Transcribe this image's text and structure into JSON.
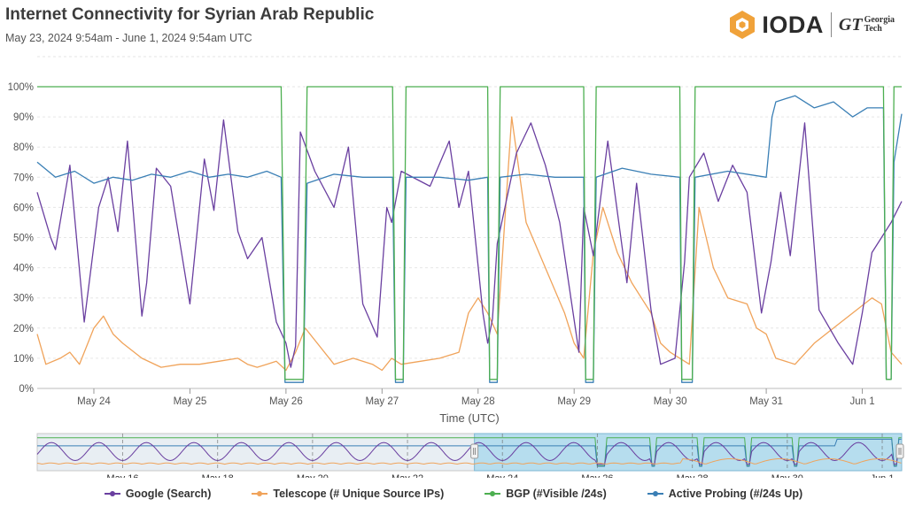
{
  "header": {
    "title": "Internet Connectivity for Syrian Arab Republic",
    "subtitle": "May 23, 2024 9:54am - June 1, 2024 9:54am UTC"
  },
  "logo": {
    "brand": "IODA",
    "partner_mark": "GT",
    "partner_line1": "Georgia",
    "partner_line2": "Tech"
  },
  "colors": {
    "google": "#6a3fa0",
    "telescope": "#f0a35a",
    "bgp": "#4caf50",
    "probing": "#3a7fb5"
  },
  "legend": [
    {
      "label": "Google (Search)",
      "color": "#6a3fa0"
    },
    {
      "label": "Telescope (# Unique Source IPs)",
      "color": "#f0a35a"
    },
    {
      "label": "BGP (#Visible /24s)",
      "color": "#4caf50"
    },
    {
      "label": "Active Probing (#/24s Up)",
      "color": "#3a7fb5"
    }
  ],
  "navigator": {
    "tick_labels": [
      "May 16",
      "May 18",
      "May 20",
      "May 22",
      "May 24",
      "May 26",
      "May 28",
      "May 30",
      "Jun 1"
    ],
    "selected_range": [
      "May 23",
      "Jun 1"
    ]
  },
  "chart_data": {
    "type": "line",
    "xlabel": "Time (UTC)",
    "ylabel": "",
    "ylim": [
      0,
      100
    ],
    "y_ticks": [
      "0%",
      "10%",
      "20%",
      "30%",
      "40%",
      "50%",
      "60%",
      "70%",
      "80%",
      "90%",
      "100%"
    ],
    "x_tick_labels": [
      "May 24",
      "May 25",
      "May 26",
      "May 27",
      "May 28",
      "May 29",
      "May 30",
      "May 31",
      "Jun 1"
    ],
    "x_range_days": [
      23.41,
      32.41
    ],
    "grid": true,
    "legend_position": "bottom",
    "series": [
      {
        "name": "Google (Search)",
        "x": [
          23.41,
          23.55,
          23.6,
          23.75,
          23.9,
          24.05,
          24.15,
          24.25,
          24.35,
          24.5,
          24.55,
          24.65,
          24.8,
          25.0,
          25.15,
          25.25,
          25.35,
          25.5,
          25.6,
          25.75,
          25.9,
          26.0,
          26.05,
          26.1,
          26.15,
          26.3,
          26.5,
          26.65,
          26.8,
          26.95,
          27.05,
          27.1,
          27.2,
          27.5,
          27.7,
          27.8,
          27.9,
          28.05,
          28.1,
          28.15,
          28.2,
          28.4,
          28.55,
          28.7,
          28.85,
          29.05,
          29.1,
          29.2,
          29.35,
          29.55,
          29.65,
          29.8,
          29.9,
          30.05,
          30.15,
          30.2,
          30.35,
          30.5,
          30.65,
          30.8,
          30.95,
          31.05,
          31.15,
          31.25,
          31.4,
          31.55,
          31.75,
          31.9,
          32.0,
          32.1,
          32.2,
          32.3,
          32.41
        ],
        "values": [
          65,
          50,
          46,
          74,
          22,
          60,
          70,
          52,
          82,
          24,
          35,
          73,
          67,
          28,
          76,
          59,
          89,
          52,
          43,
          50,
          22,
          15,
          7,
          14,
          85,
          72,
          60,
          80,
          28,
          17,
          60,
          55,
          72,
          67,
          82,
          60,
          72,
          25,
          15,
          23,
          48,
          78,
          88,
          74,
          55,
          12,
          60,
          44,
          82,
          35,
          68,
          26,
          8,
          10,
          42,
          70,
          78,
          62,
          74,
          65,
          25,
          42,
          65,
          44,
          88,
          26,
          15,
          8,
          25,
          45,
          50,
          55,
          62
        ]
      },
      {
        "name": "Telescope (# Unique Source IPs)",
        "x": [
          23.41,
          23.5,
          23.65,
          23.75,
          23.85,
          24.0,
          24.1,
          24.2,
          24.3,
          24.5,
          24.7,
          24.9,
          25.1,
          25.3,
          25.5,
          25.6,
          25.7,
          25.8,
          25.9,
          26.0,
          26.1,
          26.2,
          26.3,
          26.5,
          26.7,
          26.9,
          27.0,
          27.1,
          27.2,
          27.4,
          27.6,
          27.8,
          27.9,
          28.0,
          28.1,
          28.2,
          28.35,
          28.5,
          28.7,
          28.9,
          29.0,
          29.1,
          29.2,
          29.3,
          29.45,
          29.6,
          29.8,
          29.9,
          30.0,
          30.1,
          30.2,
          30.3,
          30.45,
          30.6,
          30.8,
          30.9,
          31.0,
          31.1,
          31.3,
          31.5,
          31.7,
          31.9,
          32.1,
          32.2,
          32.3,
          32.41
        ],
        "values": [
          18,
          8,
          10,
          12,
          8,
          20,
          24,
          18,
          15,
          10,
          7,
          8,
          8,
          9,
          10,
          8,
          7,
          8,
          9,
          6,
          12,
          20,
          16,
          8,
          10,
          8,
          6,
          10,
          8,
          9,
          10,
          12,
          25,
          30,
          25,
          18,
          90,
          55,
          40,
          25,
          15,
          10,
          45,
          60,
          45,
          35,
          25,
          15,
          12,
          10,
          8,
          60,
          40,
          30,
          28,
          20,
          18,
          10,
          8,
          15,
          20,
          25,
          30,
          28,
          12,
          8
        ]
      },
      {
        "name": "BGP (#Visible /24s)",
        "x": [
          23.41,
          25.95,
          25.99,
          26.18,
          26.22,
          27.11,
          27.14,
          27.22,
          27.25,
          28.1,
          28.12,
          28.2,
          28.23,
          29.1,
          29.12,
          29.2,
          29.23,
          30.1,
          30.12,
          30.23,
          30.26,
          31.12,
          31.15,
          32.22,
          32.25,
          32.3,
          32.33,
          32.41
        ],
        "values": [
          100,
          100,
          3,
          3,
          100,
          100,
          3,
          3,
          100,
          100,
          3,
          3,
          100,
          100,
          3,
          3,
          100,
          100,
          3,
          3,
          100,
          100,
          100,
          100,
          3,
          3,
          100,
          100
        ]
      },
      {
        "name": "Active Probing (#/24s Up)",
        "x": [
          23.41,
          23.6,
          23.8,
          24.0,
          24.2,
          24.4,
          24.6,
          24.8,
          25.0,
          25.2,
          25.4,
          25.6,
          25.8,
          25.95,
          25.99,
          26.18,
          26.22,
          26.5,
          26.8,
          27.11,
          27.14,
          27.22,
          27.25,
          27.6,
          27.9,
          28.1,
          28.12,
          28.2,
          28.23,
          28.5,
          28.8,
          29.1,
          29.12,
          29.2,
          29.23,
          29.5,
          29.8,
          30.1,
          30.12,
          30.23,
          30.26,
          30.6,
          31.0,
          31.06,
          31.1,
          31.3,
          31.5,
          31.7,
          31.9,
          32.05,
          32.22,
          32.25,
          32.3,
          32.33,
          32.41
        ],
        "values": [
          75,
          70,
          72,
          68,
          70,
          69,
          71,
          70,
          72,
          70,
          71,
          70,
          72,
          70,
          2,
          2,
          68,
          71,
          70,
          70,
          2,
          2,
          70,
          70,
          69,
          70,
          2,
          2,
          70,
          71,
          70,
          70,
          2,
          2,
          70,
          73,
          71,
          70,
          2,
          2,
          70,
          72,
          70,
          90,
          95,
          97,
          93,
          95,
          90,
          93,
          93,
          3,
          3,
          75,
          91
        ]
      }
    ]
  }
}
